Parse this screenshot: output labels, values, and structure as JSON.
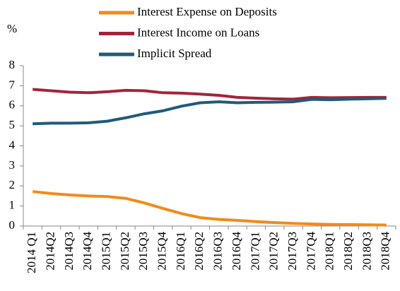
{
  "chart_data": {
    "type": "line",
    "y_label": "%",
    "categories": [
      "2014 Q1",
      "2014Q2",
      "2014Q3",
      "2014Q4",
      "2015Q1",
      "2015Q2",
      "2015Q3",
      "2015Q4",
      "2016Q1",
      "2016Q2",
      "2016Q3",
      "2016Q4",
      "2017Q1",
      "2017Q2",
      "2017Q3",
      "2017Q4",
      "2018Q1",
      "2018Q2",
      "2018Q3",
      "2018Q4"
    ],
    "series": [
      {
        "name": "Interest Expense on Deposits",
        "color": "#f28a1a",
        "values": [
          1.72,
          1.62,
          1.55,
          1.5,
          1.47,
          1.38,
          1.15,
          0.88,
          0.62,
          0.42,
          0.33,
          0.28,
          0.22,
          0.17,
          0.13,
          0.1,
          0.08,
          0.07,
          0.06,
          0.05
        ]
      },
      {
        "name": "Interest Income on Loans",
        "color": "#a3243b",
        "values": [
          6.82,
          6.75,
          6.68,
          6.65,
          6.7,
          6.77,
          6.75,
          6.65,
          6.63,
          6.58,
          6.52,
          6.42,
          6.38,
          6.35,
          6.33,
          6.42,
          6.4,
          6.41,
          6.42,
          6.42
        ]
      },
      {
        "name": "Implicit Spread",
        "color": "#1f5b7a",
        "values": [
          5.1,
          5.13,
          5.13,
          5.15,
          5.23,
          5.4,
          5.6,
          5.75,
          5.98,
          6.15,
          6.2,
          6.15,
          6.17,
          6.18,
          6.2,
          6.32,
          6.3,
          6.33,
          6.35,
          6.37
        ]
      }
    ],
    "ylim": [
      0,
      8
    ],
    "yticks": [
      0,
      1,
      2,
      3,
      4,
      5,
      6,
      7,
      8
    ],
    "grid": false
  }
}
